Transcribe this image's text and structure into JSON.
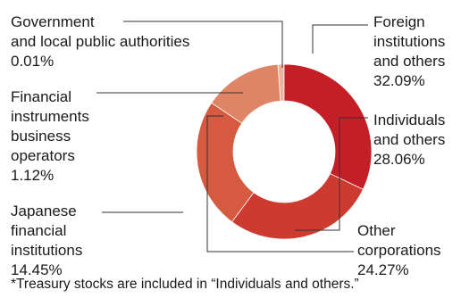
{
  "chart_data": {
    "type": "donut",
    "categories": [
      [
        "Foreign",
        "institutions",
        "and others"
      ],
      [
        "Individuals",
        "and others"
      ],
      [
        "Other",
        "corporations"
      ],
      [
        "Japanese",
        "financial",
        "institutions"
      ],
      [
        "Financial",
        "instruments",
        "business",
        "operators"
      ],
      [
        "Government",
        "and local public authorities"
      ]
    ],
    "values": [
      32.09,
      28.06,
      24.27,
      14.45,
      1.12,
      0.01
    ],
    "value_labels": [
      "32.09%",
      "28.06%",
      "24.27%",
      "14.45%",
      "1.12%",
      "0.01%"
    ],
    "colors": [
      "#c41f27",
      "#cc3a30",
      "#d55a40",
      "#df8566",
      "#e9b39d",
      "#f2d4c8"
    ],
    "footnote": "*Treasury stocks are included in “Individuals and others.”"
  }
}
